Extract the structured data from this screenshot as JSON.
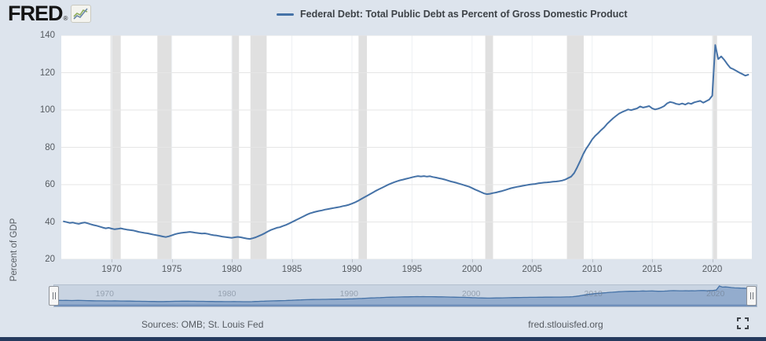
{
  "header": {
    "logo_text": "FRED",
    "logo_reg": "®",
    "legend_label": "Federal Debt: Total Public Debt as Percent of Gross Domestic Product"
  },
  "chart_data": {
    "type": "line",
    "title": "Federal Debt: Total Public Debt as Percent of Gross Domestic Product",
    "ylabel": "Percent of GDP",
    "xlabel": "",
    "frequency": "quarterly",
    "x_start": 1966.0,
    "x_step": 0.25,
    "xlim": [
      1965.8,
      2023.3
    ],
    "ylim": [
      20,
      140
    ],
    "y_ticks": [
      20,
      40,
      60,
      80,
      100,
      120,
      140
    ],
    "x_ticks": [
      1970,
      1975,
      1980,
      1985,
      1990,
      1995,
      2000,
      2005,
      2010,
      2015,
      2020
    ],
    "grid": "horizontal-and-vertical",
    "legend_position": "top",
    "colors": {
      "line": "#4572a7",
      "recession_band": "#e0e0e0",
      "h_grid": "#e6e6e6",
      "v_grid": "#eef1f4",
      "plot_bg": "#ffffff",
      "page_bg": "#dde4ed",
      "mini_fill": "#93accd",
      "mini_baseline": "#6f8fba",
      "mini_bg": "#c9d4e2"
    },
    "recession_bands": [
      [
        1969.9,
        1970.75
      ],
      [
        1973.8,
        1975.0
      ],
      [
        1980.0,
        1980.6
      ],
      [
        1981.55,
        1982.9
      ],
      [
        1990.55,
        1991.25
      ],
      [
        2001.1,
        2001.75
      ],
      [
        2007.9,
        2009.3
      ],
      [
        2020.05,
        2020.4
      ]
    ],
    "values": [
      40.3,
      39.9,
      39.5,
      39.7,
      39.3,
      39.0,
      39.4,
      39.7,
      39.3,
      38.8,
      38.3,
      38.0,
      37.5,
      37.0,
      36.6,
      36.9,
      36.4,
      36.1,
      36.3,
      36.6,
      36.2,
      35.9,
      35.7,
      35.5,
      35.1,
      34.7,
      34.4,
      34.1,
      33.9,
      33.5,
      33.2,
      32.9,
      32.6,
      32.2,
      31.9,
      32.3,
      32.8,
      33.4,
      33.8,
      34.1,
      34.3,
      34.5,
      34.7,
      34.5,
      34.2,
      34.0,
      33.8,
      33.9,
      33.6,
      33.2,
      32.9,
      32.7,
      32.4,
      32.1,
      31.9,
      31.7,
      31.5,
      31.8,
      32.0,
      31.8,
      31.4,
      31.1,
      30.9,
      31.3,
      31.8,
      32.5,
      33.2,
      34.0,
      34.9,
      35.7,
      36.3,
      36.9,
      37.2,
      37.8,
      38.4,
      39.1,
      39.9,
      40.7,
      41.5,
      42.3,
      43.1,
      43.9,
      44.6,
      45.1,
      45.5,
      45.9,
      46.2,
      46.6,
      46.9,
      47.2,
      47.5,
      47.8,
      48.1,
      48.5,
      48.8,
      49.2,
      49.8,
      50.5,
      51.3,
      52.2,
      53.1,
      54.0,
      54.9,
      55.8,
      56.7,
      57.5,
      58.3,
      59.1,
      59.9,
      60.6,
      61.2,
      61.8,
      62.3,
      62.7,
      63.1,
      63.5,
      63.9,
      64.3,
      64.6,
      64.4,
      64.6,
      64.3,
      64.5,
      64.1,
      63.8,
      63.4,
      63.1,
      62.7,
      62.2,
      61.7,
      61.3,
      60.9,
      60.4,
      59.9,
      59.4,
      58.9,
      58.2,
      57.4,
      56.7,
      56.0,
      55.3,
      54.9,
      55.1,
      55.5,
      55.8,
      56.2,
      56.6,
      57.1,
      57.6,
      58.1,
      58.5,
      58.8,
      59.1,
      59.4,
      59.7,
      60.0,
      60.2,
      60.4,
      60.7,
      60.9,
      61.1,
      61.2,
      61.4,
      61.6,
      61.7,
      61.9,
      62.2,
      62.7,
      63.5,
      64.3,
      66.2,
      69.2,
      72.6,
      76.2,
      79.2,
      81.6,
      84.2,
      86.1,
      87.6,
      89.2,
      90.7,
      92.6,
      94.1,
      95.6,
      96.9,
      98.1,
      98.9,
      99.6,
      100.3,
      99.9,
      100.4,
      100.9,
      101.9,
      101.3,
      101.7,
      102.1,
      100.9,
      100.3,
      100.7,
      101.3,
      102.1,
      103.6,
      104.3,
      103.9,
      103.3,
      103.0,
      103.5,
      102.9,
      103.7,
      103.3,
      104.1,
      104.5,
      104.9,
      103.9,
      104.7,
      105.6,
      107.7,
      134.8,
      127.3,
      128.7,
      126.9,
      124.6,
      122.6,
      121.9,
      121.0,
      120.1,
      119.3,
      118.4,
      118.9
    ]
  },
  "minimap": {
    "ylim": [
      0,
      140
    ],
    "label_years": [
      1970,
      1980,
      1990,
      2000,
      2010,
      2020
    ]
  },
  "footer": {
    "sources": "Sources: OMB; St. Louis Fed",
    "site": "fred.stlouisfed.org",
    "fullscreen_icon": "fullscreen"
  }
}
